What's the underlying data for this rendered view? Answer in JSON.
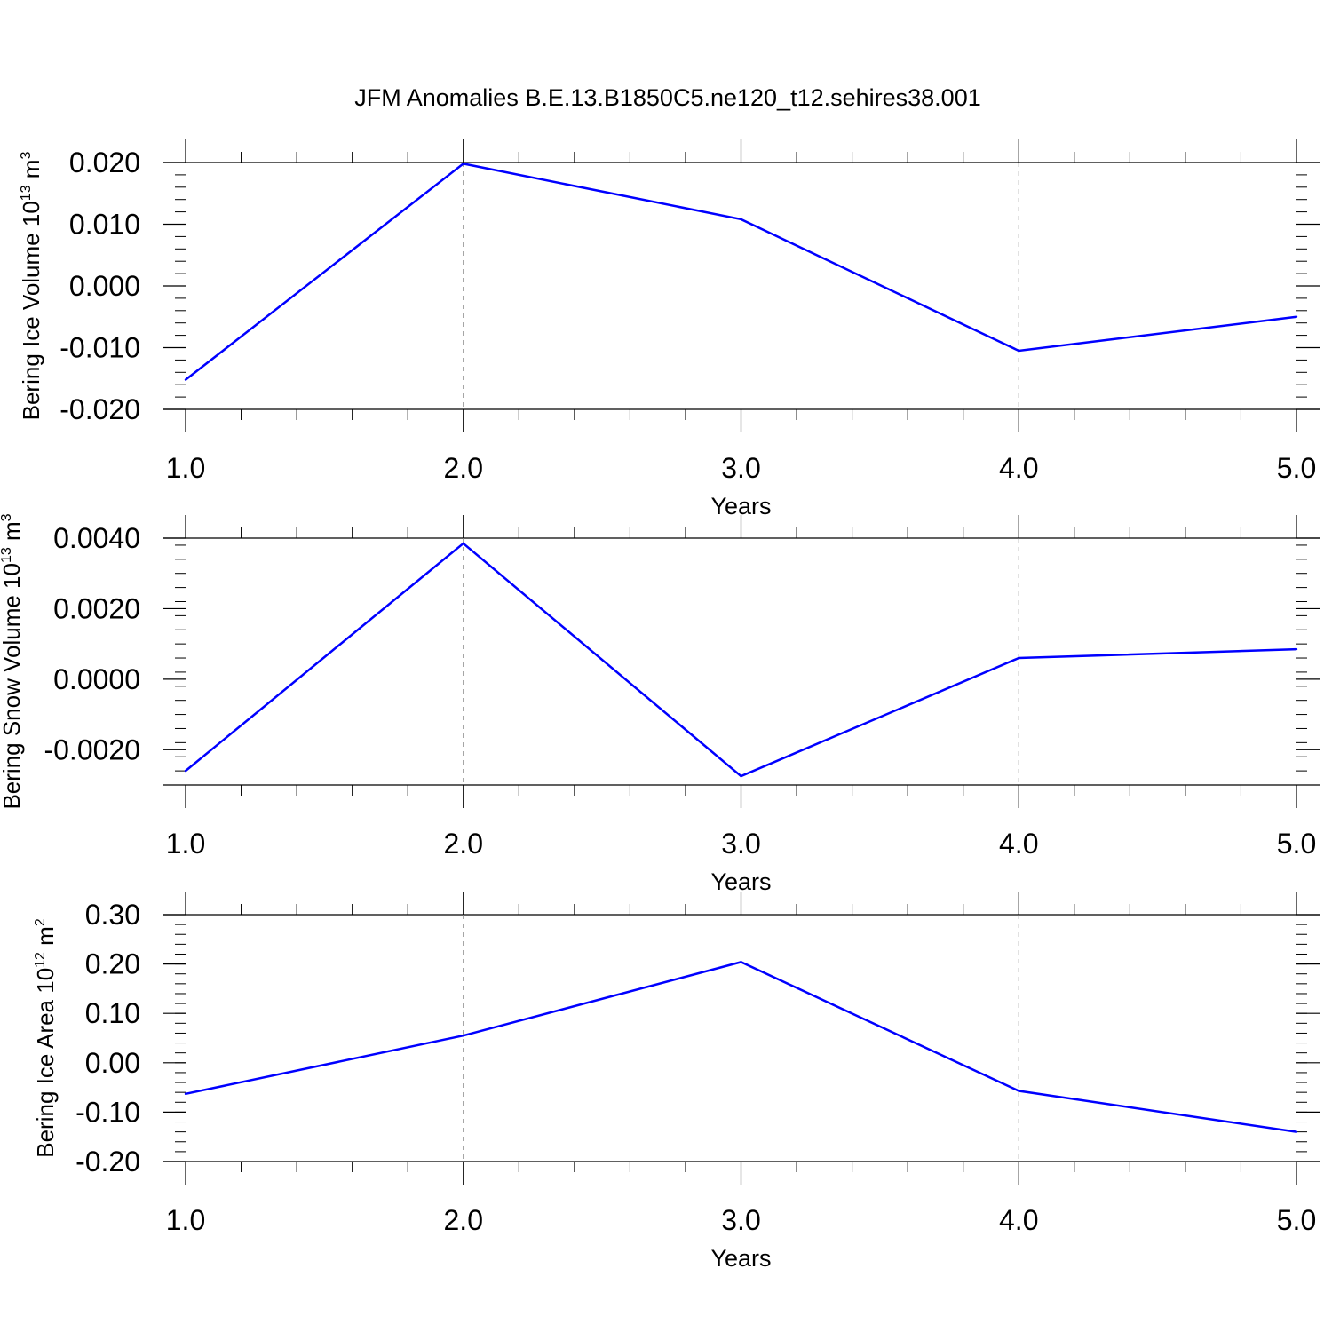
{
  "title": "JFM Anomalies B.E.13.B1850C5.ne120_t12.sehires38.001",
  "line_color": "#0000ff",
  "chart_data": [
    {
      "type": "line",
      "title": "JFM Anomalies B.E.13.B1850C5.ne120_t12.sehires38.001",
      "xlabel": "Years",
      "ylabel": {
        "main": "Bering Ice Volume 10",
        "sup": "13",
        "unit": " m",
        "unit_sup": "3"
      },
      "x": [
        1.0,
        2.0,
        3.0,
        4.0,
        5.0
      ],
      "values": [
        -0.0152,
        0.0198,
        0.0108,
        -0.0105,
        -0.005
      ],
      "xlim": [
        1.0,
        5.0
      ],
      "ylim": [
        -0.02,
        0.02
      ],
      "yticks": [
        0.02,
        0.01,
        0.0,
        -0.01,
        -0.02
      ],
      "ytick_labels": [
        "0.020",
        "0.010",
        "0.000",
        "-0.010",
        "-0.020"
      ],
      "xtick_labels": [
        "1.0",
        "2.0",
        "3.0",
        "4.0",
        "5.0"
      ],
      "grid": "vertical dashed at integer years"
    },
    {
      "type": "line",
      "xlabel": "Years",
      "ylabel": {
        "main": "Bering Snow Volume 10",
        "sup": "13",
        "unit": " m",
        "unit_sup": "3"
      },
      "x": [
        1.0,
        2.0,
        3.0,
        4.0,
        5.0
      ],
      "values": [
        -0.0026,
        0.00385,
        -0.00275,
        0.0006,
        0.00085
      ],
      "xlim": [
        1.0,
        5.0
      ],
      "ylim": [
        -0.003,
        0.004
      ],
      "yticks": [
        0.004,
        0.002,
        0.0,
        -0.002
      ],
      "ytick_labels": [
        "0.0040",
        "0.0020",
        "0.0000",
        "-0.0020"
      ],
      "xtick_labels": [
        "1.0",
        "2.0",
        "3.0",
        "4.0",
        "5.0"
      ],
      "grid": "vertical dashed at integer years"
    },
    {
      "type": "line",
      "xlabel": "Years",
      "ylabel": {
        "main": "Bering Ice Area 10",
        "sup": "12",
        "unit": " m",
        "unit_sup": "2"
      },
      "x": [
        1.0,
        2.0,
        3.0,
        4.0,
        5.0
      ],
      "values": [
        -0.063,
        0.055,
        0.204,
        -0.057,
        -0.14
      ],
      "xlim": [
        1.0,
        5.0
      ],
      "ylim": [
        -0.2,
        0.3
      ],
      "yticks": [
        0.3,
        0.2,
        0.1,
        0.0,
        -0.1,
        -0.2
      ],
      "ytick_labels": [
        "0.30",
        "0.20",
        "0.10",
        "0.00",
        "-0.10",
        "-0.20"
      ],
      "xtick_labels": [
        "1.0",
        "2.0",
        "3.0",
        "4.0",
        "5.0"
      ],
      "grid": "vertical dashed at integer years"
    }
  ]
}
